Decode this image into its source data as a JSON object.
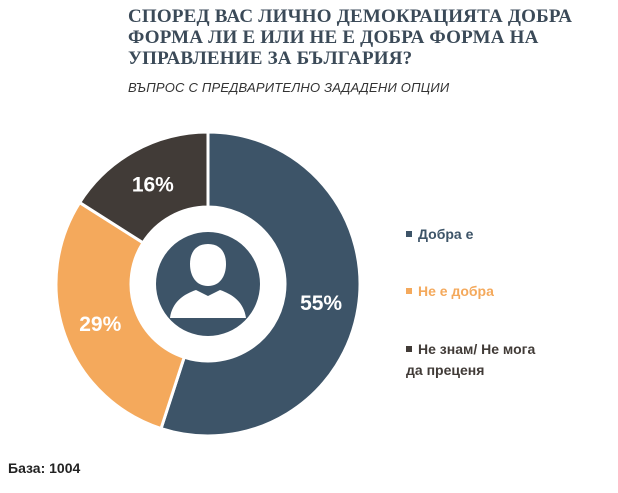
{
  "chart_data": {
    "type": "pie",
    "title": "СПОРЕД ВАС ЛИЧНО ДЕМОКРАЦИЯТА ДОБРА\nФОРМА ЛИ Е ИЛИ НЕ Е ДОБРА ФОРМА НА\nУПРАВЛЕНИЕ ЗА БЪЛГАРИЯ?",
    "subtitle": "ВЪПРОС С ПРЕДВАРИТЕЛНО ЗАДАДЕНИ ОПЦИИ",
    "slices": [
      {
        "label": "Добра е",
        "value": 55,
        "data_label": "55%",
        "color": "#3d5468"
      },
      {
        "label": "Не е добра",
        "value": 29,
        "data_label": "29%",
        "color": "#f4a95c"
      },
      {
        "label": "Не знам/ Не мога\nда преценя",
        "value": 16,
        "data_label": "16%",
        "color": "#413b37"
      }
    ],
    "legend_position": "right",
    "center_icon": "person-silhouette-icon"
  },
  "footer": {
    "base": "База: 1004"
  }
}
